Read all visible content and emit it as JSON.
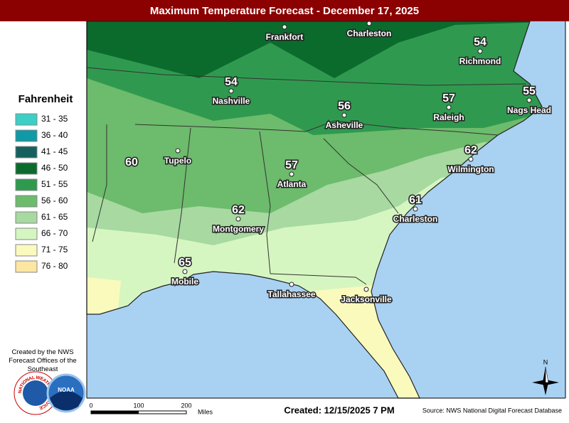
{
  "header": {
    "title": "Maximum Temperature Forecast - December 17, 2025"
  },
  "legend": {
    "title": "Fahrenheit",
    "items": [
      {
        "label": "31 - 35",
        "color": "#3ccfc6"
      },
      {
        "label": "36 - 40",
        "color": "#0e9aa7"
      },
      {
        "label": "41 - 45",
        "color": "#15605e"
      },
      {
        "label": "46 - 50",
        "color": "#0b6b2d"
      },
      {
        "label": "51 - 55",
        "color": "#2f9a4f"
      },
      {
        "label": "56 - 60",
        "color": "#6dbb6c"
      },
      {
        "label": "61 - 65",
        "color": "#a7d9a1"
      },
      {
        "label": "66 - 70",
        "color": "#d6f6c1"
      },
      {
        "label": "71 - 75",
        "color": "#fafabd"
      },
      {
        "label": "76 - 80",
        "color": "#fde6a0"
      }
    ]
  },
  "map": {
    "cities": [
      {
        "name": "Frankfort"
      },
      {
        "name": "Charleston"
      },
      {
        "name": "Richmond",
        "temperature": 54
      },
      {
        "name": "Nashville",
        "temperature": 54
      },
      {
        "name": "Asheville",
        "temperature": 56
      },
      {
        "name": "Raleigh",
        "temperature": 57
      },
      {
        "name": "Nags Head",
        "temperature": 55
      },
      {
        "name": "Tupelo"
      },
      {
        "temperature": 60
      },
      {
        "name": "Wilmington",
        "temperature": 62
      },
      {
        "name": "Atlanta",
        "temperature": 57
      },
      {
        "name": "Charleston",
        "temperature": 61
      },
      {
        "name": "Montgomery",
        "temperature": 62
      },
      {
        "name": "Mobile",
        "temperature": 65
      },
      {
        "name": "Tallahassee"
      },
      {
        "name": "Jacksonville"
      }
    ]
  },
  "credit": "Created by the NWS Forecast Offices of the Southeast",
  "logos": {
    "nws": "NATIONAL WEATHER SERVICE",
    "noaa": "NOAA"
  },
  "scale": {
    "ticks": [
      "0",
      "100",
      "200"
    ],
    "unit": "Miles"
  },
  "compass": "N",
  "created": "Created: 12/15/2025 7 PM",
  "source": "Source: NWS National Digital Forecast Database"
}
